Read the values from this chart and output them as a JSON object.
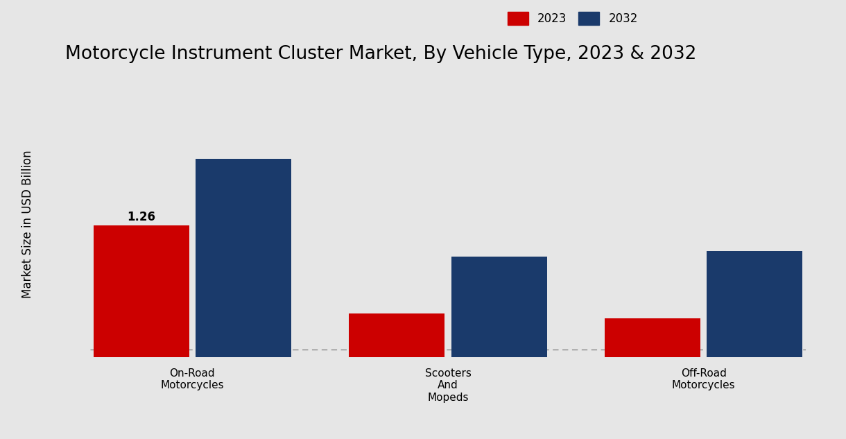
{
  "title": "Motorcycle Instrument Cluster Market, By Vehicle Type, 2023 & 2032",
  "ylabel": "Market Size in USD Billion",
  "categories": [
    "On-Road\nMotorcycles",
    "Scooters\nAnd\nMopeds",
    "Off-Road\nMotorcycles"
  ],
  "values_2023": [
    1.26,
    0.92,
    0.9
  ],
  "values_2032": [
    1.52,
    1.14,
    1.16
  ],
  "color_2023": "#cc0000",
  "color_2032": "#1a3a6b",
  "annotation_2023": "1.26",
  "background_color": "#e6e6e6",
  "legend_labels": [
    "2023",
    "2032"
  ],
  "bar_width": 0.28,
  "ylim_min": 0.75,
  "ylim_max": 1.75,
  "dashed_line_y": 0.78,
  "title_fontsize": 19,
  "label_fontsize": 12,
  "tick_fontsize": 11,
  "annotation_fontsize": 12,
  "red_strip_color": "#bb0000"
}
